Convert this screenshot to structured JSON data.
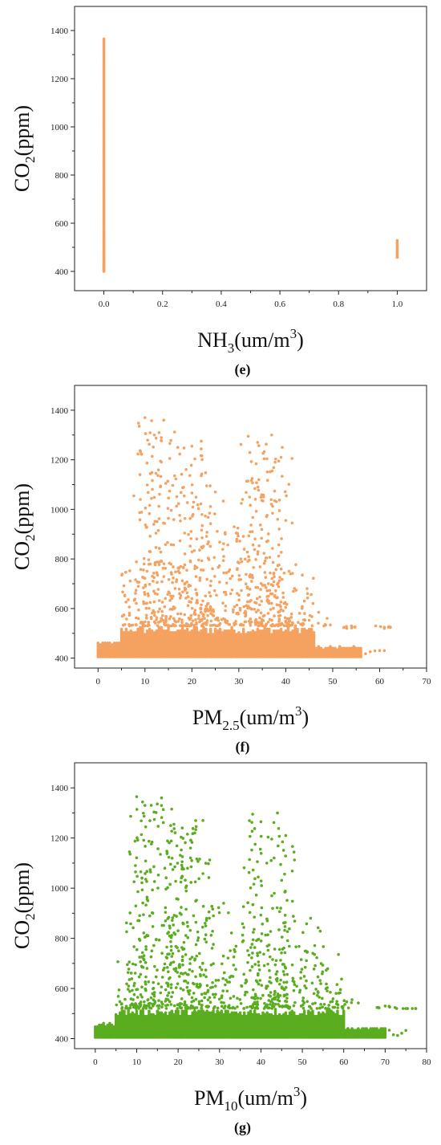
{
  "colors": {
    "orange": "#F5A261",
    "green": "#5AAD1E",
    "axis": "#222222"
  },
  "chart_data": [
    {
      "type": "scatter",
      "caption": "(e)",
      "ylabel": {
        "main": "CO",
        "sub": "2",
        "rest": "(ppm)"
      },
      "xlabel": {
        "main": "NH",
        "sub": "3",
        "rest": "(um/m",
        "sup": "3",
        "end": ")"
      },
      "xlim": [
        -0.1,
        1.1
      ],
      "ylim": [
        320,
        1500
      ],
      "xticks": [
        0.0,
        0.2,
        0.4,
        0.6,
        0.8,
        1.0
      ],
      "xtick_labels": [
        "0.0",
        "0.2",
        "0.4",
        "0.6",
        "0.8",
        "1.0"
      ],
      "yticks": [
        400,
        600,
        800,
        1000,
        1200,
        1400
      ],
      "ytick_labels": [
        "400",
        "600",
        "800",
        "1000",
        "1200",
        "1400"
      ],
      "color": "#F5A261",
      "series": [
        {
          "x_values": [
            0,
            0
          ],
          "y_range": [
            400,
            1365
          ],
          "n": 180
        },
        {
          "x_values": [
            1,
            1
          ],
          "y_range": [
            458,
            528
          ],
          "n": 14
        }
      ]
    },
    {
      "type": "scatter",
      "caption": "(f)",
      "ylabel": {
        "main": "CO",
        "sub": "2",
        "rest": "(ppm)"
      },
      "xlabel": {
        "main": "PM",
        "sub": "2.5",
        "rest": "(um/m",
        "sup": "3",
        "end": ")"
      },
      "xlim": [
        -5,
        70
      ],
      "ylim": [
        360,
        1500
      ],
      "xticks": [
        0,
        10,
        20,
        30,
        40,
        50,
        60,
        70
      ],
      "xtick_labels": [
        "0",
        "10",
        "20",
        "30",
        "40",
        "50",
        "60",
        "70"
      ],
      "yticks": [
        400,
        600,
        800,
        1000,
        1200,
        1400
      ],
      "yticks_labels": [],
      "ytick_labels": [
        "400",
        "600",
        "800",
        "1000",
        "1200",
        "1400"
      ],
      "color": "#F5A261",
      "x_range": [
        0,
        61
      ],
      "base_band": [
        405,
        530
      ],
      "peaks": [
        {
          "x": 10,
          "top": 1370
        },
        {
          "x": 12,
          "top": 1300
        },
        {
          "x": 14,
          "top": 1360
        },
        {
          "x": 17,
          "top": 1250
        },
        {
          "x": 20,
          "top": 1255
        },
        {
          "x": 22,
          "top": 1275
        },
        {
          "x": 25,
          "top": 1070
        },
        {
          "x": 29,
          "top": 930
        },
        {
          "x": 32,
          "top": 1295
        },
        {
          "x": 34,
          "top": 1270
        },
        {
          "x": 37,
          "top": 1300
        },
        {
          "x": 39,
          "top": 1210
        },
        {
          "x": 44,
          "top": 580
        },
        {
          "x": 47,
          "top": 585
        },
        {
          "x": 53,
          "top": 520
        },
        {
          "x": 61,
          "top": 520
        }
      ]
    },
    {
      "type": "scatter",
      "caption": "(g)",
      "ylabel": {
        "main": "CO",
        "sub": "2",
        "rest": "(ppm)"
      },
      "xlabel": {
        "main": "PM",
        "sub": "10",
        "rest": "(um/m",
        "sup": "3",
        "end": ")"
      },
      "xlim": [
        -5,
        80
      ],
      "ylim": [
        360,
        1500
      ],
      "xticks": [
        0,
        10,
        20,
        30,
        40,
        50,
        60,
        70,
        80
      ],
      "xtick_labels": [
        "0",
        "10",
        "20",
        "30",
        "40",
        "50",
        "60",
        "70",
        "80"
      ],
      "yticks": [
        400,
        600,
        800,
        1000,
        1200,
        1400
      ],
      "ytick_labels": [
        "400",
        "600",
        "800",
        "1000",
        "1200",
        "1400"
      ],
      "color": "#5AAD1E",
      "x_range": [
        0,
        75
      ],
      "base_band": [
        405,
        520
      ],
      "peaks": [
        {
          "x": 10,
          "top": 1365
        },
        {
          "x": 12,
          "top": 1330
        },
        {
          "x": 16,
          "top": 1360
        },
        {
          "x": 19,
          "top": 1255
        },
        {
          "x": 21,
          "top": 1240
        },
        {
          "x": 23,
          "top": 1160
        },
        {
          "x": 26,
          "top": 1270
        },
        {
          "x": 31,
          "top": 940
        },
        {
          "x": 38,
          "top": 1295
        },
        {
          "x": 40,
          "top": 1265
        },
        {
          "x": 44,
          "top": 1300
        },
        {
          "x": 46,
          "top": 1210
        },
        {
          "x": 52,
          "top": 880
        },
        {
          "x": 56,
          "top": 590
        },
        {
          "x": 62,
          "top": 555
        },
        {
          "x": 70,
          "top": 530
        },
        {
          "x": 75,
          "top": 520
        }
      ]
    }
  ]
}
